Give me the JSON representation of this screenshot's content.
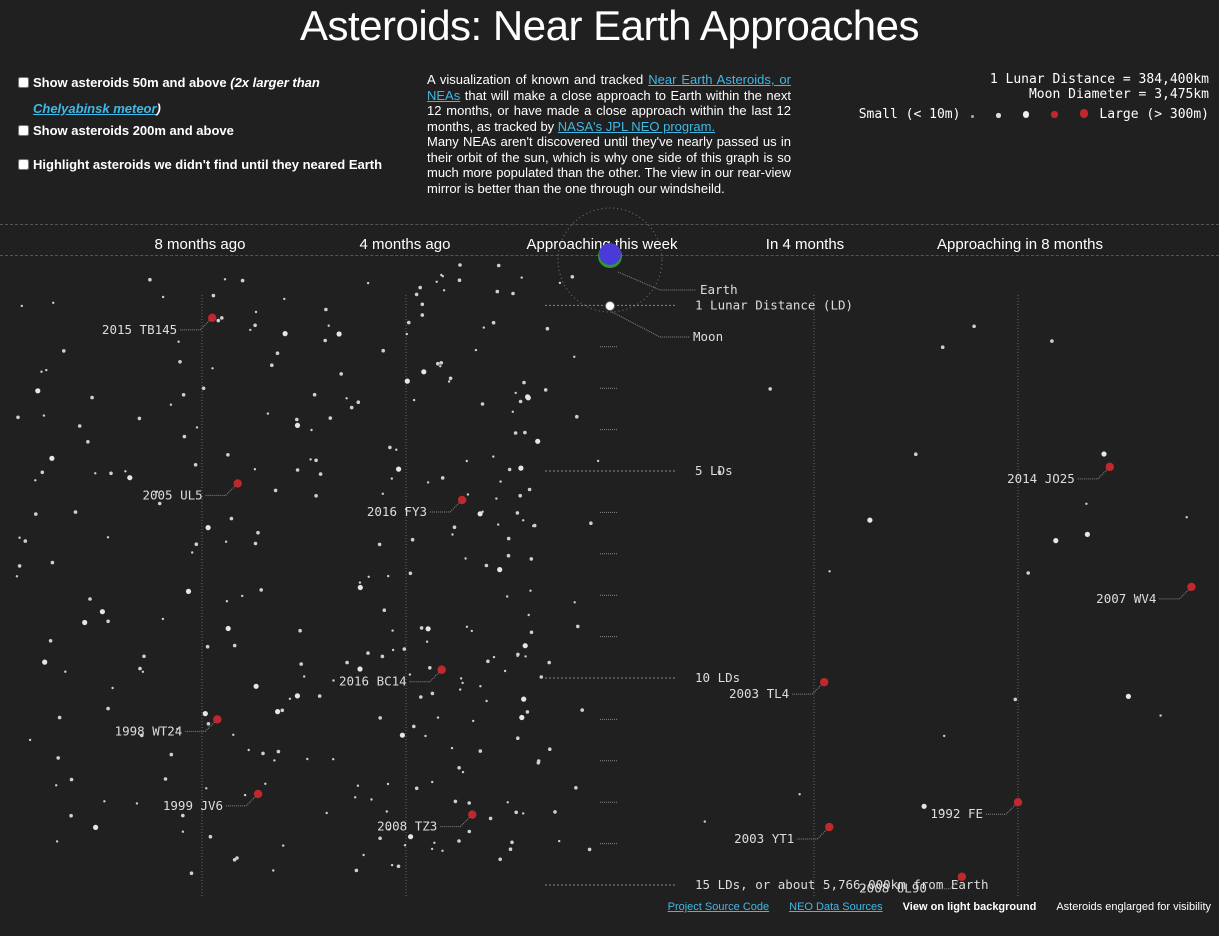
{
  "title": "Asteroids: Near Earth Approaches",
  "options": [
    {
      "label": "Show asteroids 50m and above",
      "note_pre": "(2x larger than ",
      "link": "Chelyabinsk meteor",
      "note_post": ")"
    },
    {
      "label": "Show asteroids 200m and above"
    },
    {
      "label": "Highlight asteroids we didn't find until they neared Earth"
    }
  ],
  "description": {
    "p1_a": "A visualization of known and tracked ",
    "p1_link1": "Near Earth Asteroids, or NEAs",
    "p1_b": " that will make a close approach to Earth within the next 12 months, or have made a close approach within the last 12 months, as tracked by ",
    "p1_link2": "NASA's JPL NEO program.",
    "p2": "Many NEAs aren't discovered until they've nearly passed us in their orbit of the sun, which is why one side of this graph is so much more populated than the other. The view in our rear-view mirror is better than the one through our windsheild."
  },
  "scale": {
    "lunar_distance": "1 Lunar Distance = 384,400km",
    "moon_diameter": "Moon Diameter = 3,475km"
  },
  "size_legend": {
    "small": "Small (< 10m)",
    "large": "Large (> 300m)",
    "dots": [
      {
        "r": 1.5,
        "color": "#aaaaaa"
      },
      {
        "r": 2.2,
        "color": "#dddddd"
      },
      {
        "r": 3.2,
        "color": "#eeeeee"
      },
      {
        "r": 3.2,
        "color": "#c0282e"
      },
      {
        "r": 4.4,
        "color": "#c0282e"
      }
    ]
  },
  "periods": [
    "8 months ago",
    "4 months ago",
    "Approaching this week",
    "In 4 months",
    "Approaching in 8 months"
  ],
  "chart_data": {
    "type": "scatter",
    "x_unit": "months from now",
    "y_unit": "lunar distances",
    "xlim": [
      -12,
      12
    ],
    "ylim": [
      0,
      15
    ],
    "earth_label": "Earth",
    "moon_label": "Moon",
    "distance_labels": [
      {
        "ld": 1,
        "label": "1 Lunar Distance (LD)"
      },
      {
        "ld": 5,
        "label": "5 LDs"
      },
      {
        "ld": 10,
        "label": "10 LDs"
      },
      {
        "ld": 15,
        "label": "15 LDs, or about 5,766,000km from Earth"
      }
    ],
    "named_asteroids": [
      {
        "name": "2015 TB145",
        "months": -7.8,
        "ld": 1.3
      },
      {
        "name": "2005 UL5",
        "months": -7.3,
        "ld": 5.3
      },
      {
        "name": "2016 FY3",
        "months": -2.9,
        "ld": 5.7
      },
      {
        "name": "2016 BC14",
        "months": -3.3,
        "ld": 9.8
      },
      {
        "name": "1998 WT24",
        "months": -7.7,
        "ld": 11.0
      },
      {
        "name": "1999 JV6",
        "months": -6.9,
        "ld": 12.8
      },
      {
        "name": "2008 TZ3",
        "months": -2.7,
        "ld": 13.3
      },
      {
        "name": "2003 TL4",
        "months": 4.2,
        "ld": 10.1
      },
      {
        "name": "2003 YT1",
        "months": 4.3,
        "ld": 13.6
      },
      {
        "name": "2014 JO25",
        "months": 9.8,
        "ld": 4.9
      },
      {
        "name": "2007 WV4",
        "months": 11.4,
        "ld": 7.8
      },
      {
        "name": "1992 FE",
        "months": 8.0,
        "ld": 13.0
      },
      {
        "name": "2008 UL90",
        "months": 6.9,
        "ld": 14.8
      }
    ]
  },
  "footer": {
    "source": "Project Source Code",
    "neo": "NEO Data Sources",
    "light": "View on light background",
    "note": "Asteroids englarged for visibility"
  }
}
